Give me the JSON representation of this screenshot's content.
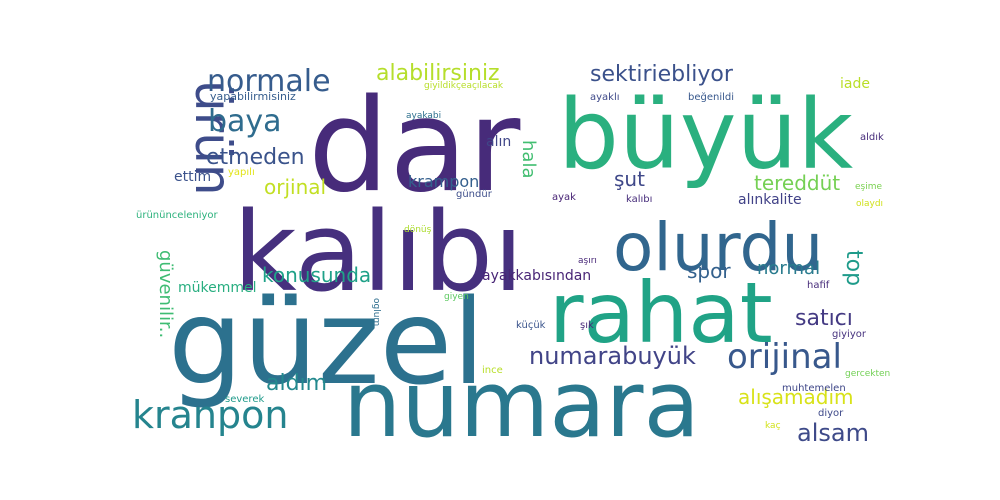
{
  "chart_data": {
    "type": "wordcloud",
    "words": [
      {
        "text": "dar",
        "color": "#472b7a"
      },
      {
        "text": "büyük",
        "color": "#2ab07f"
      },
      {
        "text": "kalıbı",
        "color": "#46307e"
      },
      {
        "text": "güzel",
        "color": "#2c718e"
      },
      {
        "text": "numara",
        "color": "#2a788e"
      },
      {
        "text": "rahat",
        "color": "#20a386"
      },
      {
        "text": "olurdu",
        "color": "#31668e"
      },
      {
        "text": "ürün",
        "color": "#3e4c8a"
      },
      {
        "text": "kranpon",
        "color": "#25848e"
      },
      {
        "text": "orijinal",
        "color": "#38588c"
      },
      {
        "text": "numarabuyük",
        "color": "#414487"
      },
      {
        "text": "normale",
        "color": "#365c8d"
      },
      {
        "text": "baya",
        "color": "#2f6c8e"
      },
      {
        "text": "alabilirsiniz",
        "color": "#b5de2b"
      },
      {
        "text": "sektiriebliyor",
        "color": "#3b518b"
      },
      {
        "text": "etmeden",
        "color": "#3a538b"
      },
      {
        "text": "güvenilir..",
        "color": "#3ebc73"
      },
      {
        "text": "konusunda",
        "color": "#1fa188"
      },
      {
        "text": "top",
        "color": "#1e9b8a"
      },
      {
        "text": "satıcı",
        "color": "#443a83"
      },
      {
        "text": "alsam",
        "color": "#3e4a89"
      },
      {
        "text": "aldım",
        "color": "#23898e"
      },
      {
        "text": "alışamadım",
        "color": "#d8e219"
      },
      {
        "text": "orjinal",
        "color": "#c2df23"
      },
      {
        "text": "tereddüt",
        "color": "#75d054"
      },
      {
        "text": "normal",
        "color": "#297b8e"
      },
      {
        "text": "spor",
        "color": "#34618d"
      },
      {
        "text": "şut",
        "color": "#3f4889"
      },
      {
        "text": "hala",
        "color": "#42be71"
      },
      {
        "text": "krampon",
        "color": "#345f8d"
      },
      {
        "text": "ayakkabısından",
        "color": "#482576"
      },
      {
        "text": "mükemmel",
        "color": "#28ae80"
      },
      {
        "text": "alınkalite",
        "color": "#414287"
      },
      {
        "text": "alın",
        "color": "#404688"
      },
      {
        "text": "ettim",
        "color": "#3b528b"
      },
      {
        "text": "iade",
        "color": "#bade28"
      },
      {
        "text": "yapabilirmisiniz",
        "color": "#365d8d"
      },
      {
        "text": "giyildikçeaçılacak",
        "color": "#b8de29"
      },
      {
        "text": "ayaklı",
        "color": "#3e4989"
      },
      {
        "text": "beğenildi",
        "color": "#38588c"
      },
      {
        "text": "ayakabi",
        "color": "#2d708e"
      },
      {
        "text": "aldık",
        "color": "#472d7b"
      },
      {
        "text": "yapılı",
        "color": "#e2e418"
      },
      {
        "text": "ürününceleniyor",
        "color": "#2db27d"
      },
      {
        "text": "gündür",
        "color": "#3d4e8a"
      },
      {
        "text": "ayak",
        "color": "#482475"
      },
      {
        "text": "kalıbı",
        "color": "#472d7b"
      },
      {
        "text": "eşime",
        "color": "#7ad151"
      },
      {
        "text": "olaydı",
        "color": "#d0e11c"
      },
      {
        "text": "dönüş",
        "color": "#addc30"
      },
      {
        "text": "aşırı",
        "color": "#482878"
      },
      {
        "text": "giyen",
        "color": "#5ec962"
      },
      {
        "text": "hafif",
        "color": "#472c7a"
      },
      {
        "text": "oglum",
        "color": "#2e6e8e"
      },
      {
        "text": "küçük",
        "color": "#3a548c"
      },
      {
        "text": "şık",
        "color": "#482979"
      },
      {
        "text": "giyiyor",
        "color": "#46327e"
      },
      {
        "text": "ince",
        "color": "#b8de29"
      },
      {
        "text": "muhtemelen",
        "color": "#3f4788"
      },
      {
        "text": "gercekten",
        "color": "#73d056"
      },
      {
        "text": "severek",
        "color": "#1f9a8a"
      },
      {
        "text": "diyor",
        "color": "#3e4989"
      },
      {
        "text": "kaç",
        "color": "#d2e21b"
      }
    ]
  }
}
